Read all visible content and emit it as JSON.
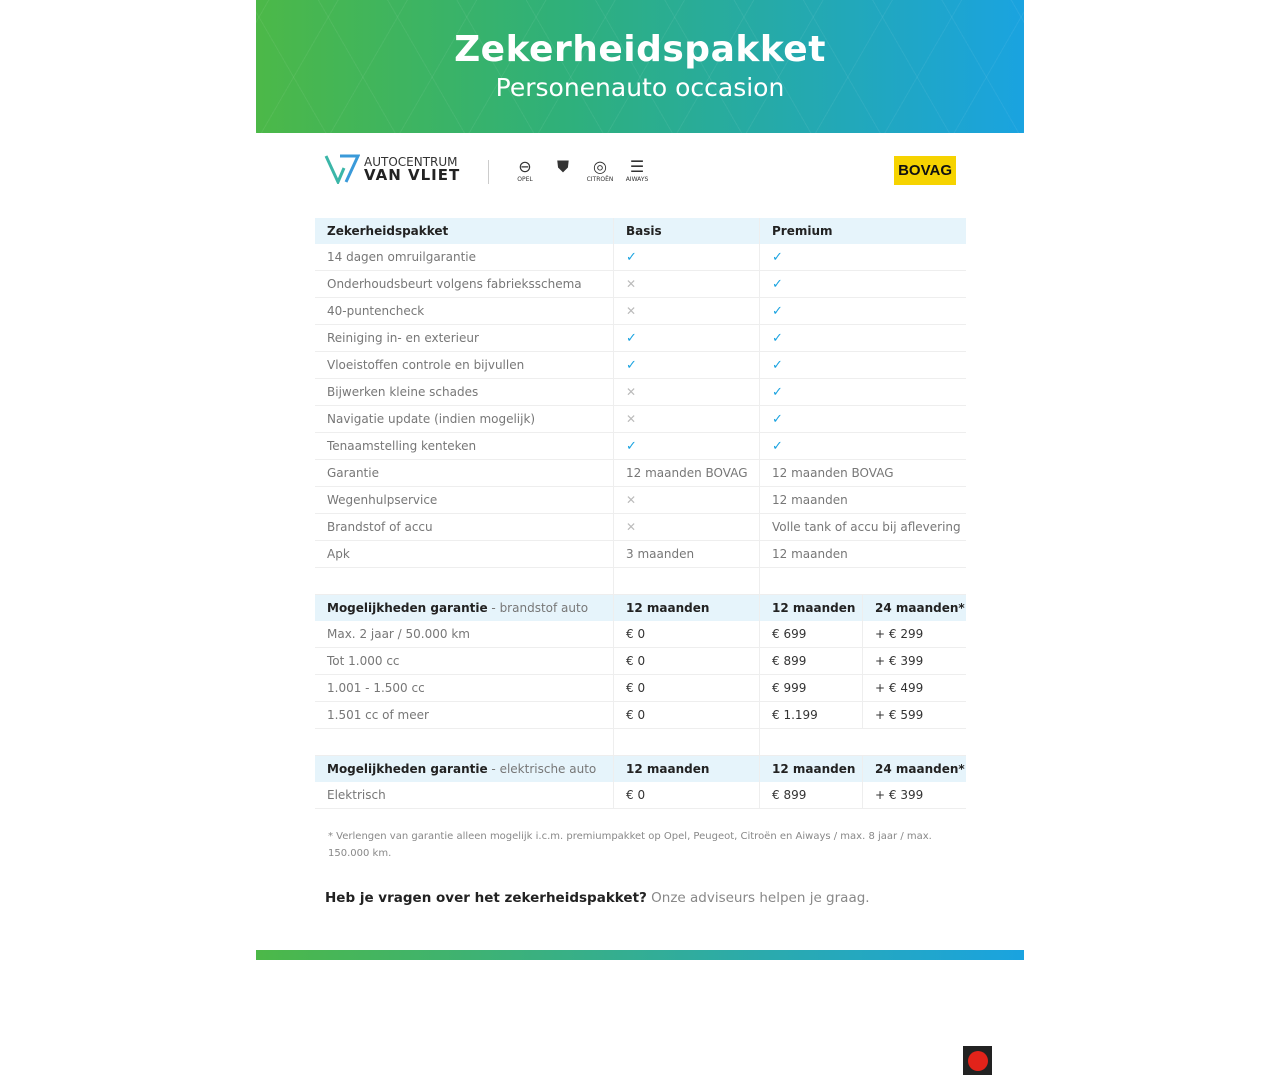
{
  "header": {
    "title": "Zekerheidspakket",
    "subtitle": "Personenauto occasion",
    "gradient": [
      "#4cb848",
      "#1aa3e0"
    ]
  },
  "logos": {
    "dealer_line1": "AUTOCENTRUM",
    "dealer_line2": "VAN VLIET",
    "brands": [
      "OPEL",
      "PEUGEOT",
      "CITROËN",
      "AIWAYS"
    ],
    "bovag": "BOVAG"
  },
  "colors": {
    "check": "#1aa3e0",
    "cross": "#bbbbbb",
    "header_bg": "#e6f4fb"
  },
  "package_table": {
    "headers": [
      "Zekerheidspakket",
      "Basis",
      "Premium"
    ],
    "rows": [
      [
        "14 dagen omruilgarantie",
        "check",
        "check"
      ],
      [
        "Onderhoudsbeurt volgens fabrieksschema",
        "cross",
        "check"
      ],
      [
        "40-puntencheck",
        "cross",
        "check"
      ],
      [
        "Reiniging in- en exterieur",
        "check",
        "check"
      ],
      [
        "Vloeistoffen controle en bijvullen",
        "check",
        "check"
      ],
      [
        "Bijwerken kleine schades",
        "cross",
        "check"
      ],
      [
        "Navigatie update (indien mogelijk)",
        "cross",
        "check"
      ],
      [
        "Tenaamstelling kenteken",
        "check",
        "check"
      ],
      [
        "Garantie",
        "12 maanden BOVAG",
        "12 maanden BOVAG"
      ],
      [
        "Wegenhulpservice",
        "cross",
        "12 maanden"
      ],
      [
        "Brandstof of accu",
        "cross",
        "Volle tank of accu bij aflevering"
      ],
      [
        "Apk",
        "3 maanden",
        "12 maanden"
      ]
    ]
  },
  "fuel_table": {
    "title": "Mogelijkheden garantie",
    "subtitle": " - brandstof auto",
    "headers": [
      "12 maanden",
      "12 maanden",
      "24 maanden*"
    ],
    "rows": [
      [
        "Max. 2 jaar / 50.000 km",
        "€ 0",
        "€ 699",
        "+ € 299"
      ],
      [
        "Tot 1.000 cc",
        "€ 0",
        "€ 899",
        "+ € 399"
      ],
      [
        "1.001 - 1.500 cc",
        "€ 0",
        "€ 999",
        "+ € 499"
      ],
      [
        "1.501 cc of meer",
        "€ 0",
        "€ 1.199",
        "+ € 599"
      ]
    ]
  },
  "electric_table": {
    "title": "Mogelijkheden garantie",
    "subtitle": " - elektrische auto",
    "headers": [
      "12 maanden",
      "12 maanden",
      "24 maanden*"
    ],
    "rows": [
      [
        "Elektrisch",
        "€ 0",
        "€ 899",
        "+ € 399"
      ]
    ]
  },
  "footnote": "* Verlengen van garantie alleen mogelijk i.c.m. premiumpakket op Opel, Peugeot, Citroën en Aiways / max. 8 jaar / max. 150.000 km.",
  "question": {
    "bold": "Heb je vragen over het zekerheidspakket?",
    "text": " Onze adviseurs helpen je graag."
  }
}
